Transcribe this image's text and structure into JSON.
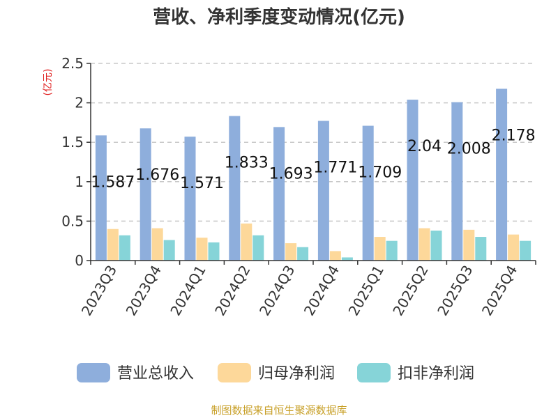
{
  "chart_data": {
    "type": "bar",
    "title": "营收、净利季度变动情况(亿元)",
    "ylabel": "(亿元)",
    "ylim": [
      0,
      2.5
    ],
    "yticks": [
      "0",
      "0.5",
      "1",
      "1.5",
      "2",
      "2.5"
    ],
    "ytick_values": [
      0,
      0.5,
      1,
      1.5,
      2,
      2.5
    ],
    "grid": "horizontal-dashed",
    "legend": "bottom",
    "categories": [
      "2023Q3",
      "2023Q4",
      "2024Q1",
      "2024Q2",
      "2024Q3",
      "2024Q4",
      "2025Q1",
      "2025Q2",
      "2025Q3",
      "2025Q4"
    ],
    "series": [
      {
        "name": "营业总收入",
        "color": "#8eaedc",
        "values": [
          1.587,
          1.676,
          1.571,
          1.833,
          1.693,
          1.771,
          1.709,
          2.04,
          2.008,
          2.178
        ],
        "labels": [
          "1.587",
          "1.676",
          "1.571",
          "1.833",
          "1.693",
          "1.771",
          "1.709",
          "2.04",
          "2.008",
          "2.178"
        ]
      },
      {
        "name": "归母净利润",
        "color": "#fdd89a",
        "values": [
          0.4,
          0.41,
          0.29,
          0.47,
          0.22,
          0.12,
          0.3,
          0.41,
          0.39,
          0.33
        ]
      },
      {
        "name": "扣非净利润",
        "color": "#86d4d8",
        "values": [
          0.32,
          0.26,
          0.23,
          0.32,
          0.17,
          0.04,
          0.25,
          0.38,
          0.3,
          0.25
        ]
      }
    ]
  },
  "source": "制图数据来自恒生聚源数据库"
}
